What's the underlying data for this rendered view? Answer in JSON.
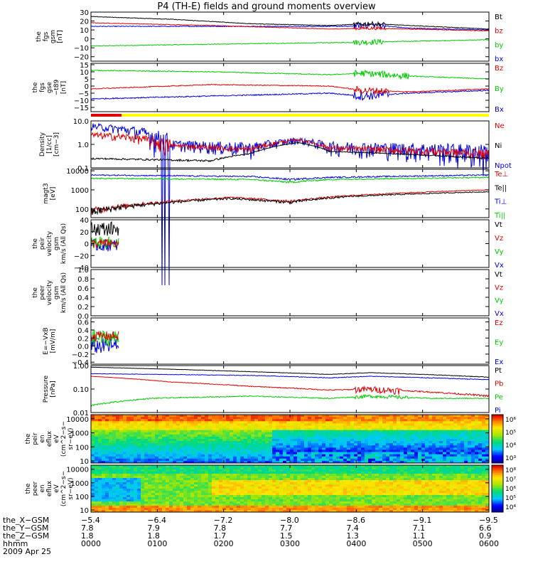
{
  "title": "P4 (TH-E) fields and ground moments overview",
  "colors": {
    "black": "#000000",
    "red": "#e00000",
    "green": "#00cc00",
    "blue": "#0000e0",
    "yellow": "#ffff00"
  },
  "panels": [
    {
      "id": "fgs_gsm",
      "ylabel": [
        "the",
        "fgs",
        "gsm",
        "[nT]"
      ],
      "scale": "linear",
      "ylim": [
        -25,
        30
      ],
      "ticks": [
        {
          "v": 30,
          "t": "30"
        },
        {
          "v": 20,
          "t": "20"
        },
        {
          "v": 10,
          "t": "10"
        },
        {
          "v": 0,
          "t": "0"
        },
        {
          "v": -10,
          "t": "−10"
        },
        {
          "v": -20,
          "t": "−20"
        }
      ],
      "legend": [
        {
          "label": "Bt",
          "color": "black"
        },
        {
          "label": "bz",
          "color": "red"
        },
        {
          "label": "by",
          "color": "green"
        },
        {
          "label": "bx",
          "color": "blue"
        }
      ]
    },
    {
      "id": "fgs_gse",
      "ylabel": [
        "the",
        "fgs",
        "gse",
        "−t89",
        "[nT]"
      ],
      "scale": "linear",
      "ylim": [
        -18,
        16
      ],
      "ticks": [
        {
          "v": 15,
          "t": "15"
        },
        {
          "v": 10,
          "t": "10"
        },
        {
          "v": 5,
          "t": "5"
        },
        {
          "v": 0,
          "t": "0"
        },
        {
          "v": -5,
          "t": "−5"
        },
        {
          "v": -10,
          "t": "−10"
        },
        {
          "v": -15,
          "t": "−15"
        }
      ],
      "legend": [
        {
          "label": "Bz",
          "color": "red"
        },
        {
          "label": "By",
          "color": "green"
        },
        {
          "label": "Bx",
          "color": "blue"
        }
      ]
    },
    {
      "id": "bar",
      "type": "bar"
    },
    {
      "id": "density",
      "ylabel": [
        "Density",
        "[1/cc]",
        "[cm−3]"
      ],
      "scale": "log",
      "ylim": [
        0.1,
        10
      ],
      "ticks": [
        {
          "v": 10,
          "t": "10.0"
        },
        {
          "v": 1,
          "t": "1.0"
        },
        {
          "v": 0.1,
          "t": "0.1"
        }
      ],
      "legend": [
        {
          "label": "Ne",
          "color": "red"
        },
        {
          "label": "Ni",
          "color": "black"
        },
        {
          "label": "Npot",
          "color": "blue"
        }
      ]
    },
    {
      "id": "temperature",
      "ylabel": [
        "magt3",
        "[eV]"
      ],
      "scale": "log",
      "ylim": [
        35,
        12000
      ],
      "ticks": [
        {
          "v": 10000,
          "t": "10000"
        },
        {
          "v": 1000,
          "t": "1000"
        },
        {
          "v": 100,
          "t": "100"
        }
      ],
      "legend": [
        {
          "label": "Te⊥",
          "color": "red"
        },
        {
          "label": "Te||",
          "color": "black"
        },
        {
          "label": "Ti⊥",
          "color": "blue"
        },
        {
          "label": "Ti||",
          "color": "green"
        }
      ]
    },
    {
      "id": "peir_velocity",
      "ylabel": [
        "the",
        "peir",
        "velocity",
        "gsm",
        "km/s (All Qs)"
      ],
      "scale": "linear",
      "ylim": [
        -40,
        40
      ],
      "ticks": [
        {
          "v": 40,
          "t": "40"
        },
        {
          "v": 20,
          "t": "20"
        },
        {
          "v": 0,
          "t": "0"
        },
        {
          "v": -20,
          "t": "−20"
        },
        {
          "v": -40,
          "t": "−40"
        }
      ],
      "legend": [
        {
          "label": "Vt",
          "color": "black"
        },
        {
          "label": "Vz",
          "color": "red"
        },
        {
          "label": "Vy",
          "color": "green"
        },
        {
          "label": "Vx",
          "color": "blue"
        }
      ]
    },
    {
      "id": "peer_velocity",
      "ylabel": [
        "the",
        "peer",
        "velocity",
        "gsm",
        "km/s (All Qs)"
      ],
      "scale": "linear",
      "ylim": [
        0,
        1
      ],
      "ticks": [
        {
          "v": 1,
          "t": "1.0"
        },
        {
          "v": 0.8,
          "t": "0.8"
        },
        {
          "v": 0.6,
          "t": "0.6"
        },
        {
          "v": 0.4,
          "t": "0.4"
        },
        {
          "v": 0.2,
          "t": "0.2"
        },
        {
          "v": 0,
          "t": "0.0"
        }
      ],
      "legend": [
        {
          "label": "Vt",
          "color": "black"
        },
        {
          "label": "Vz",
          "color": "red"
        },
        {
          "label": "Vy",
          "color": "green"
        },
        {
          "label": "Vx",
          "color": "blue"
        }
      ]
    },
    {
      "id": "efield",
      "ylabel": [
        "E=−VxB",
        "[mV/m]"
      ],
      "scale": "linear",
      "ylim": [
        -0.45,
        0.7
      ],
      "ticks": [
        {
          "v": 0.6,
          "t": "0.6"
        },
        {
          "v": 0.4,
          "t": "0.4"
        },
        {
          "v": 0.2,
          "t": "0.2"
        },
        {
          "v": 0,
          "t": "0.0"
        },
        {
          "v": -0.2,
          "t": "−0.2"
        },
        {
          "v": -0.4,
          "t": "−0.4"
        }
      ],
      "legend": [
        {
          "label": "Ez",
          "color": "red"
        },
        {
          "label": "Ey",
          "color": "green"
        },
        {
          "label": "Ex",
          "color": "blue"
        }
      ]
    },
    {
      "id": "pressure",
      "ylabel": [
        "Pressure",
        "[nPa]"
      ],
      "scale": "log",
      "ylim": [
        0.01,
        1
      ],
      "ticks": [
        {
          "v": 1,
          "t": "1.00"
        },
        {
          "v": 0.1,
          "t": "0.10"
        },
        {
          "v": 0.01,
          "t": "0.01"
        }
      ],
      "legend": [
        {
          "label": "Pt",
          "color": "black"
        },
        {
          "label": "Pb",
          "color": "red"
        },
        {
          "label": "Pe",
          "color": "green"
        },
        {
          "label": "Pi",
          "color": "blue"
        }
      ]
    },
    {
      "id": "peir_spec",
      "type": "spectrogram",
      "ylabel": [
        "the",
        "peir",
        "en",
        "eflux",
        "eV",
        "(cm^2−s−",
        "sr−eV)"
      ],
      "scale": "log",
      "ylim": [
        7,
        20000
      ],
      "ticks": [
        {
          "v": 10000,
          "t": "10000"
        },
        {
          "v": 1000,
          "t": "1000"
        },
        {
          "v": 100,
          "t": "100"
        },
        {
          "v": 10,
          "t": "10"
        }
      ],
      "colorbar": [
        {
          "t": "10⁶"
        },
        {
          "t": "10⁵"
        },
        {
          "t": "10⁴"
        },
        {
          "t": "10³"
        }
      ]
    },
    {
      "id": "peer_spec",
      "type": "spectrogram",
      "ylabel": [
        "the",
        "peer",
        "en",
        "eflux",
        "eV",
        "(cm^2−s−",
        "sr−eV)"
      ],
      "scale": "log",
      "ylim": [
        7,
        20000
      ],
      "ticks": [
        {
          "v": 10000,
          "t": "10000"
        },
        {
          "v": 1000,
          "t": "1000"
        },
        {
          "v": 100,
          "t": "100"
        },
        {
          "v": 10,
          "t": "10"
        }
      ],
      "colorbar": [
        {
          "t": "10⁸"
        },
        {
          "t": "10⁷"
        },
        {
          "t": "10⁶"
        },
        {
          "t": "10⁵"
        },
        {
          "t": "10⁴"
        }
      ]
    }
  ],
  "chart_data": [
    {
      "type": "line",
      "title": "P4 (TH-E) fields and ground moments overview",
      "ylabel": "the fgs gsm [nT]",
      "x": [
        "0000",
        "0100",
        "0200",
        "0300",
        "0400",
        "0500",
        "0600"
      ],
      "series": [
        {
          "name": "Bt",
          "values": [
            24,
            20,
            16,
            14,
            17,
            13,
            11
          ]
        },
        {
          "name": "bz",
          "values": [
            18,
            15,
            12,
            10,
            12,
            10,
            9
          ]
        },
        {
          "name": "by",
          "values": [
            -8,
            -6,
            -5,
            -4,
            -3,
            -2,
            -1
          ]
        },
        {
          "name": "bx",
          "values": [
            14,
            14,
            13,
            13,
            16,
            11,
            10
          ]
        }
      ]
    },
    {
      "type": "line",
      "ylabel": "the fgs gse −t89 [nT]",
      "x": [
        "0000",
        "0100",
        "0200",
        "0300",
        "0400",
        "0500",
        "0600"
      ],
      "series": [
        {
          "name": "Bz",
          "values": [
            -2,
            0,
            1,
            0,
            -5,
            -3,
            -2
          ]
        },
        {
          "name": "By",
          "values": [
            11,
            10,
            9,
            8,
            7,
            6,
            5
          ]
        },
        {
          "name": "Bx",
          "values": [
            -9,
            -7,
            -6,
            -5,
            -6,
            -5,
            -3
          ]
        }
      ]
    },
    {
      "type": "line",
      "ylabel": "Density [1/cc] [cm−3]",
      "x": [
        "0000",
        "0100",
        "0200",
        "0300",
        "0400",
        "0500",
        "0600"
      ],
      "series": [
        {
          "name": "Ne",
          "values": [
            2.5,
            0.8,
            0.7,
            1.5,
            0.6,
            0.5,
            0.4
          ]
        },
        {
          "name": "Ni",
          "values": [
            0.25,
            0.2,
            0.2,
            0.5,
            0.4,
            0.3,
            0.25
          ]
        },
        {
          "name": "Npot",
          "values": [
            6,
            1.0,
            0.7,
            1.4,
            0.7,
            0.5,
            0.5
          ]
        }
      ]
    },
    {
      "type": "line",
      "ylabel": "magt3 [eV]",
      "x": [
        "0000",
        "0100",
        "0200",
        "0300",
        "0400",
        "0500",
        "0600"
      ],
      "series": [
        {
          "name": "Te⊥",
          "values": [
            80,
            250,
            400,
            300,
            500,
            700,
            1000
          ]
        },
        {
          "name": "Te||",
          "values": [
            70,
            220,
            350,
            250,
            450,
            600,
            800
          ]
        },
        {
          "name": "Ti⊥",
          "values": [
            6000,
            5500,
            5000,
            3500,
            5000,
            5500,
            6000
          ]
        },
        {
          "name": "Ti||",
          "values": [
            4000,
            3800,
            3500,
            2500,
            3500,
            4000,
            4500
          ]
        }
      ]
    },
    {
      "type": "line",
      "ylabel": "the peir velocity gsm km/s (All Qs)",
      "x": [
        "0000",
        "0020"
      ],
      "series": [
        {
          "name": "Vt",
          "values": [
            30,
            20
          ]
        },
        {
          "name": "Vz",
          "values": [
            5,
            -5
          ]
        },
        {
          "name": "Vy",
          "values": [
            0,
            5
          ]
        },
        {
          "name": "Vx",
          "values": [
            -5,
            0
          ]
        }
      ]
    },
    {
      "type": "line",
      "ylabel": "the peer velocity gsm km/s (All Qs)",
      "x": [],
      "series": []
    },
    {
      "type": "line",
      "ylabel": "E=−VxB [mV/m]",
      "x": [
        "0000",
        "0020"
      ],
      "series": [
        {
          "name": "Ez",
          "values": [
            0.3,
            0.2
          ]
        },
        {
          "name": "Ey",
          "values": [
            0.1,
            0.3
          ]
        },
        {
          "name": "Ex",
          "values": [
            -0.1,
            0.1
          ]
        }
      ]
    },
    {
      "type": "line",
      "ylabel": "Pressure [nPa]",
      "x": [
        "0000",
        "0100",
        "0200",
        "0300",
        "0400",
        "0500",
        "0600"
      ],
      "series": [
        {
          "name": "Pt",
          "values": [
            0.8,
            0.6,
            0.45,
            0.4,
            0.5,
            0.35,
            0.3
          ]
        },
        {
          "name": "Pb",
          "values": [
            0.35,
            0.2,
            0.13,
            0.09,
            0.1,
            0.07,
            0.05
          ]
        },
        {
          "name": "Pe",
          "values": [
            0.02,
            0.05,
            0.05,
            0.04,
            0.05,
            0.04,
            0.04
          ]
        },
        {
          "name": "Pi",
          "values": [
            0.45,
            0.4,
            0.35,
            0.3,
            0.35,
            0.3,
            0.25
          ]
        }
      ]
    },
    {
      "type": "heatmap",
      "ylabel": "the peir en eflux eV (cm^2−s−sr−eV)",
      "ylim": [
        7,
        20000
      ],
      "colorbar": [
        "10³",
        "10⁴",
        "10⁵",
        "10⁶"
      ]
    },
    {
      "type": "heatmap",
      "ylabel": "the peer en eflux eV (cm^2−s−sr−eV)",
      "ylim": [
        7,
        20000
      ],
      "colorbar": [
        "10⁴",
        "10⁵",
        "10⁶",
        "10⁷",
        "10⁸"
      ]
    }
  ],
  "footer": {
    "rows": [
      {
        "label": "the_X−GSM",
        "values": [
          "−5.4",
          "−6.4",
          "−7.2",
          "−8.0",
          "−8.6",
          "−9.1",
          "−9.5"
        ]
      },
      {
        "label": "the_Y−GSM",
        "values": [
          "7.8",
          "7.9",
          "7.8",
          "7.7",
          "7.4",
          "7.1",
          "6.6"
        ]
      },
      {
        "label": "the_Z−GSM",
        "values": [
          "1.8",
          "1.8",
          "1.7",
          "1.5",
          "1.3",
          "1.1",
          "0.9"
        ]
      },
      {
        "label": "hhmm",
        "values": [
          "0000",
          "0100",
          "0200",
          "0300",
          "0400",
          "0500",
          "0600"
        ]
      }
    ],
    "date": "2009 Apr 25"
  }
}
